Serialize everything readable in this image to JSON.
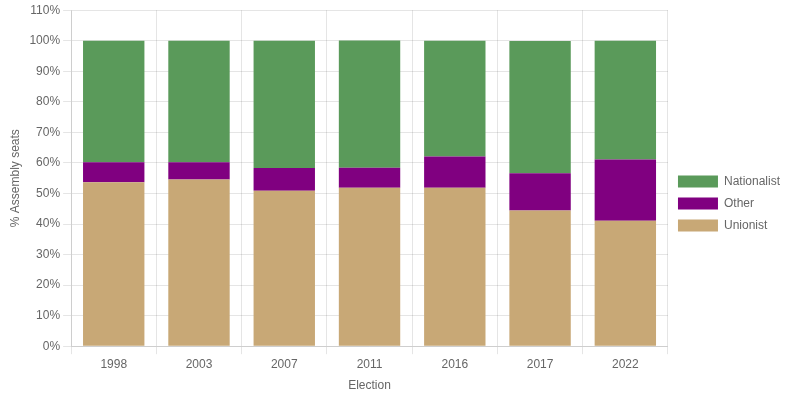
{
  "chart_data": {
    "type": "bar",
    "stacked": true,
    "grid": true,
    "legend": "right",
    "xlabel": "Election",
    "ylabel": "% Assembly seats",
    "categories": [
      "1998",
      "2003",
      "2007",
      "2011",
      "2016",
      "2017",
      "2022"
    ],
    "series": [
      {
        "name": "Unionist",
        "color": "#c8a876",
        "values": [
          53.7,
          54.6,
          50.9,
          51.9,
          51.9,
          44.4,
          41.1
        ]
      },
      {
        "name": "Other",
        "color": "#800080",
        "values": [
          6.5,
          5.6,
          7.4,
          6.5,
          10.2,
          12.2,
          20.0
        ]
      },
      {
        "name": "Nationalist",
        "color": "#5a9a5a",
        "values": [
          39.8,
          39.8,
          41.7,
          41.7,
          37.9,
          43.3,
          38.9
        ]
      }
    ],
    "ylim": [
      0,
      110
    ],
    "yticks": [
      {
        "value": 0,
        "label": "0%"
      },
      {
        "value": 10,
        "label": "10%"
      },
      {
        "value": 20,
        "label": "20%"
      },
      {
        "value": 30,
        "label": "30%"
      },
      {
        "value": 40,
        "label": "40%"
      },
      {
        "value": 50,
        "label": "50%"
      },
      {
        "value": 60,
        "label": "60%"
      },
      {
        "value": 70,
        "label": "70%"
      },
      {
        "value": 80,
        "label": "80%"
      },
      {
        "value": 90,
        "label": "90%"
      },
      {
        "value": 100,
        "label": "100%"
      },
      {
        "value": 110,
        "label": "110%"
      }
    ]
  }
}
